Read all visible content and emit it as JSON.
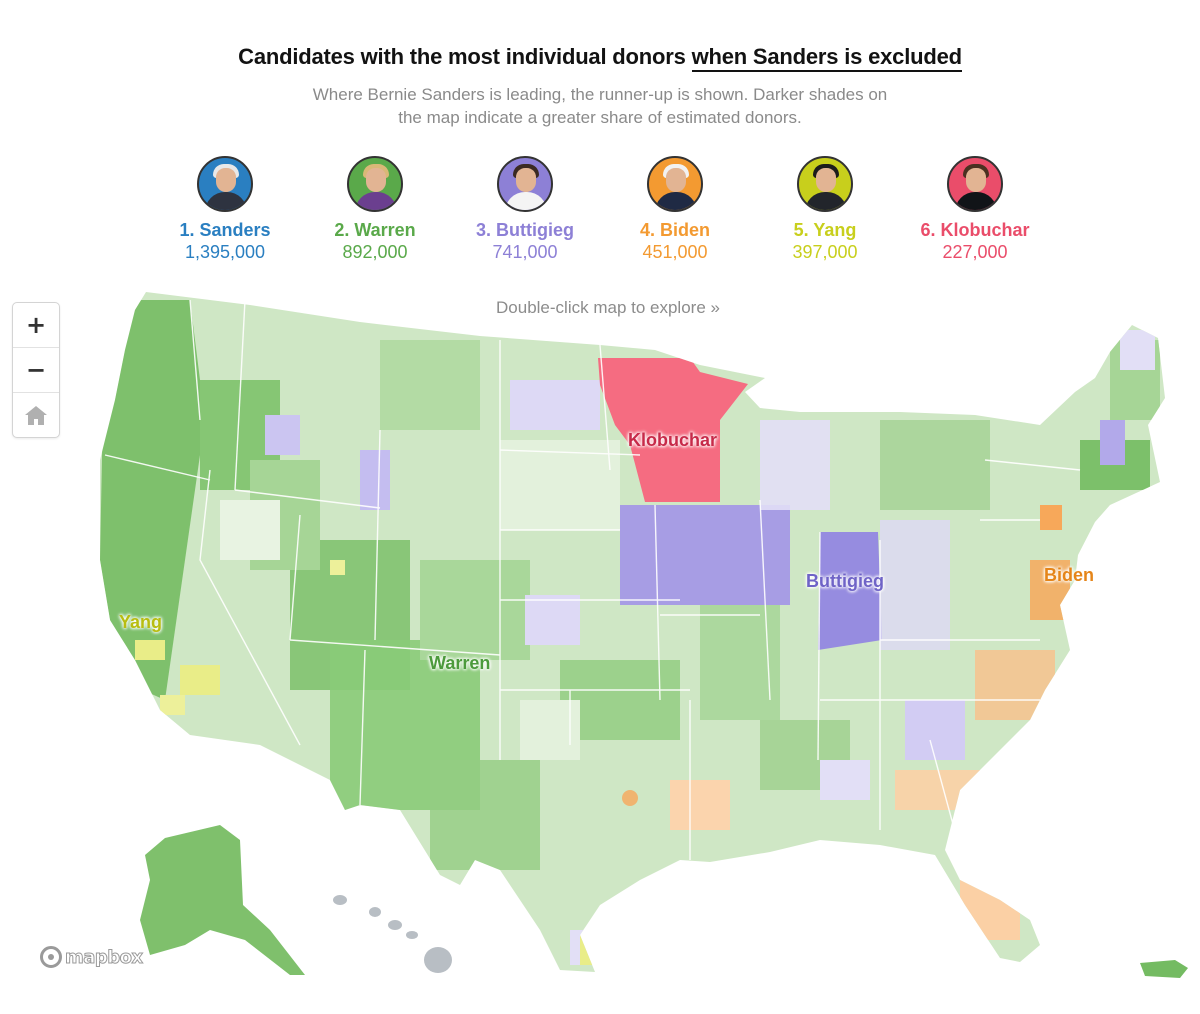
{
  "title": {
    "prefix": "Candidates with the most individual donors ",
    "highlight": "when Sanders is excluded"
  },
  "subtitle": "Where Bernie Sanders is leading, the runner-up is shown. Darker shades on the map indicate a greater share of estimated donors.",
  "candidates": [
    {
      "label": "1. Sanders",
      "count": "1,395,000",
      "color": "#2a7fc1",
      "icon": "sanders-avatar-icon"
    },
    {
      "label": "2. Warren",
      "count": "892,000",
      "color": "#5aa94a",
      "icon": "warren-avatar-icon"
    },
    {
      "label": "3. Buttigieg",
      "count": "741,000",
      "color": "#8d80d6",
      "icon": "buttigieg-avatar-icon"
    },
    {
      "label": "4. Biden",
      "count": "451,000",
      "color": "#f39a31",
      "icon": "biden-avatar-icon"
    },
    {
      "label": "5. Yang",
      "count": "397,000",
      "color": "#c8cf1c",
      "icon": "yang-avatar-icon"
    },
    {
      "label": "6. Klobuchar",
      "count": "227,000",
      "color": "#ea4d6a",
      "icon": "klobuchar-avatar-icon"
    }
  ],
  "map": {
    "hint": "Double-click map to explore »",
    "labels": {
      "klobuchar": "Klobuchar",
      "buttigieg": "Buttigieg",
      "biden": "Biden",
      "yang": "Yang",
      "warren": "Warren"
    },
    "colors": {
      "warren": "#6cb55a",
      "warren_light": "#cfe7c5",
      "buttigieg": "#9f95e2",
      "buttigieg_light": "#ddd9f5",
      "biden": "#f7a85a",
      "yang": "#e7ea70",
      "klobuchar": "#f56c81",
      "territory": "#b8bec4"
    }
  },
  "controls": {
    "zoom_in": "+",
    "zoom_out": "−",
    "home_icon": "home-icon"
  },
  "attribution": "mapbox"
}
